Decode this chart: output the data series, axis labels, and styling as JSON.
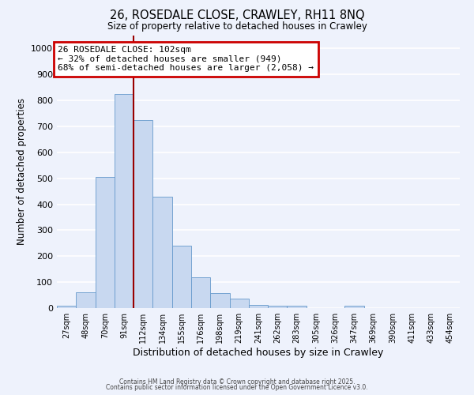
{
  "title": "26, ROSEDALE CLOSE, CRAWLEY, RH11 8NQ",
  "subtitle": "Size of property relative to detached houses in Crawley",
  "xlabel": "Distribution of detached houses by size in Crawley",
  "ylabel": "Number of detached properties",
  "bar_labels": [
    "27sqm",
    "48sqm",
    "70sqm",
    "91sqm",
    "112sqm",
    "134sqm",
    "155sqm",
    "176sqm",
    "198sqm",
    "219sqm",
    "241sqm",
    "262sqm",
    "283sqm",
    "305sqm",
    "326sqm",
    "347sqm",
    "369sqm",
    "390sqm",
    "411sqm",
    "433sqm",
    "454sqm"
  ],
  "bar_values": [
    8,
    60,
    505,
    825,
    725,
    430,
    240,
    120,
    58,
    36,
    13,
    10,
    8,
    0,
    0,
    8,
    0,
    0,
    0,
    0,
    0
  ],
  "bar_color": "#c8d8f0",
  "bar_edge_color": "#6699cc",
  "ylim": [
    0,
    1050
  ],
  "yticks": [
    0,
    100,
    200,
    300,
    400,
    500,
    600,
    700,
    800,
    900,
    1000
  ],
  "vline_x": 3.5,
  "vline_color": "#990000",
  "annotation_title": "26 ROSEDALE CLOSE: 102sqm",
  "annotation_line2": "← 32% of detached houses are smaller (949)",
  "annotation_line3": "68% of semi-detached houses are larger (2,058) →",
  "annotation_box_edge": "#cc0000",
  "background_color": "#eef2fc",
  "grid_color": "#ffffff",
  "footer1": "Contains HM Land Registry data © Crown copyright and database right 2025.",
  "footer2": "Contains public sector information licensed under the Open Government Licence v3.0."
}
